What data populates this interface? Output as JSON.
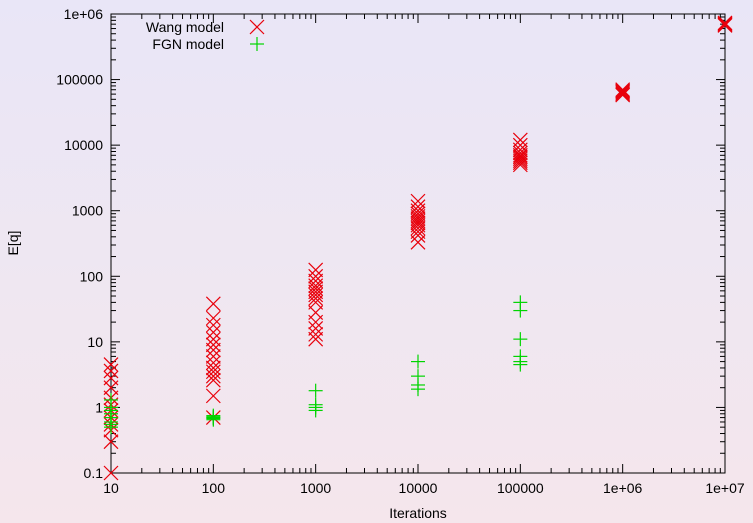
{
  "chart_data": {
    "type": "scatter",
    "title": "",
    "xlabel": "Iterations",
    "ylabel": "E[q]",
    "xscale": "log",
    "yscale": "log",
    "xlim": [
      10,
      10000000
    ],
    "ylim": [
      0.1,
      1000000
    ],
    "x_ticks": [
      "10",
      "100",
      "1000",
      "10000",
      "100000",
      "1e+06",
      "1e+07"
    ],
    "y_ticks": [
      "0.1",
      "1",
      "10",
      "100",
      "1000",
      "10000",
      "100000",
      "1e+06"
    ],
    "grid": false,
    "legend_position": "top-left",
    "series": [
      {
        "name": "Wang model",
        "marker": "x",
        "color": "#e8000b",
        "points": [
          [
            10,
            0.1
          ],
          [
            10,
            0.3
          ],
          [
            10,
            0.45
          ],
          [
            10,
            0.55
          ],
          [
            10,
            0.7
          ],
          [
            10,
            0.9
          ],
          [
            10,
            1.1
          ],
          [
            10,
            1.4
          ],
          [
            10,
            2.0
          ],
          [
            10,
            2.8
          ],
          [
            10,
            3.6
          ],
          [
            10,
            4.5
          ],
          [
            100,
            0.7
          ],
          [
            100,
            1.5
          ],
          [
            100,
            2.6
          ],
          [
            100,
            3.0
          ],
          [
            100,
            3.5
          ],
          [
            100,
            4.0
          ],
          [
            100,
            4.8
          ],
          [
            100,
            6.0
          ],
          [
            100,
            7.5
          ],
          [
            100,
            9.0
          ],
          [
            100,
            11
          ],
          [
            100,
            14
          ],
          [
            100,
            18
          ],
          [
            100,
            23
          ],
          [
            100,
            38
          ],
          [
            1000,
            11
          ],
          [
            1000,
            13
          ],
          [
            1000,
            16
          ],
          [
            1000,
            20
          ],
          [
            1000,
            28
          ],
          [
            1000,
            40
          ],
          [
            1000,
            46
          ],
          [
            1000,
            52
          ],
          [
            1000,
            58
          ],
          [
            1000,
            65
          ],
          [
            1000,
            72
          ],
          [
            1000,
            85
          ],
          [
            1000,
            100
          ],
          [
            1000,
            125
          ],
          [
            10000,
            330
          ],
          [
            10000,
            420
          ],
          [
            10000,
            480
          ],
          [
            10000,
            540
          ],
          [
            10000,
            600
          ],
          [
            10000,
            650
          ],
          [
            10000,
            700
          ],
          [
            10000,
            760
          ],
          [
            10000,
            820
          ],
          [
            10000,
            900
          ],
          [
            10000,
            1000
          ],
          [
            10000,
            1150
          ],
          [
            10000,
            1400
          ],
          [
            100000,
            5000
          ],
          [
            100000,
            5400
          ],
          [
            100000,
            5800
          ],
          [
            100000,
            6200
          ],
          [
            100000,
            6600
          ],
          [
            100000,
            7000
          ],
          [
            100000,
            7600
          ],
          [
            100000,
            8500
          ],
          [
            100000,
            10000
          ],
          [
            100000,
            12000
          ],
          [
            1000000,
            58000
          ],
          [
            1000000,
            61000
          ],
          [
            1000000,
            64000
          ],
          [
            1000000,
            67000
          ],
          [
            1000000,
            70000
          ],
          [
            10000000,
            670000
          ],
          [
            10000000,
            690000
          ],
          [
            10000000,
            710000
          ],
          [
            10000000,
            730000
          ]
        ]
      },
      {
        "name": "FGN model",
        "marker": "+",
        "color": "#00d400",
        "points": [
          [
            10,
            0.5
          ],
          [
            10,
            0.55
          ],
          [
            10,
            0.6
          ],
          [
            10,
            0.7
          ],
          [
            10,
            0.8
          ],
          [
            10,
            0.9
          ],
          [
            10,
            1.0
          ],
          [
            10,
            1.3
          ],
          [
            100,
            0.65
          ],
          [
            100,
            0.68
          ],
          [
            100,
            0.7
          ],
          [
            100,
            0.72
          ],
          [
            100,
            0.75
          ],
          [
            1000,
            0.9
          ],
          [
            1000,
            1.0
          ],
          [
            1000,
            1.1
          ],
          [
            1000,
            1.8
          ],
          [
            10000,
            1.9
          ],
          [
            10000,
            2.2
          ],
          [
            10000,
            3.0
          ],
          [
            10000,
            5.0
          ],
          [
            100000,
            4.5
          ],
          [
            100000,
            5.0
          ],
          [
            100000,
            6.0
          ],
          [
            100000,
            11
          ],
          [
            100000,
            30
          ],
          [
            100000,
            40
          ]
        ]
      }
    ]
  }
}
